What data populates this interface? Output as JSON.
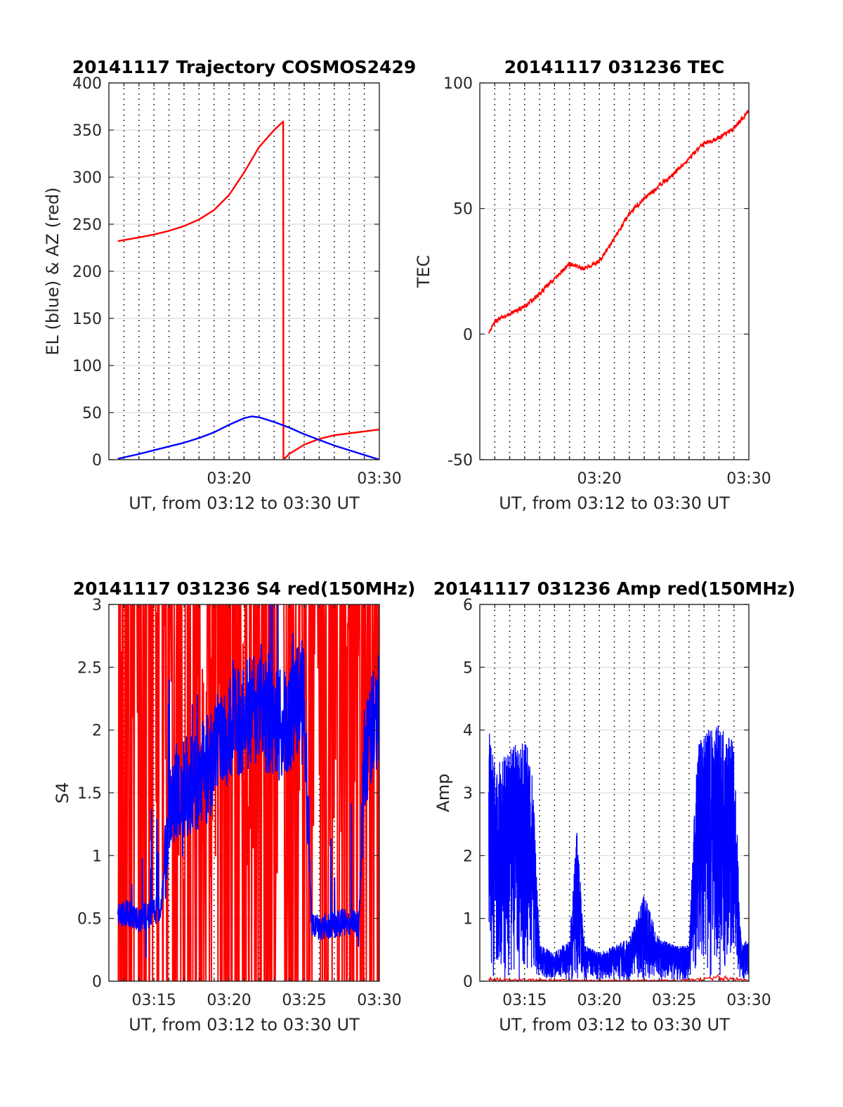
{
  "colors": {
    "red": "#ff0000",
    "blue": "#0000ff",
    "grid": "#dcdcdc",
    "axis": "#262626"
  },
  "chart_data": [
    {
      "id": "trajectory",
      "type": "line",
      "title": "20141117 Trajectory COSMOS2429",
      "xlabel": "UT, from 03:12 to 03:30 UT",
      "ylabel": "EL (blue) & AZ (red)",
      "xlim": [
        "03:12",
        "03:30"
      ],
      "ylim": [
        0,
        400
      ],
      "xticks": [
        "03:20",
        "03:30"
      ],
      "yticks": [
        0,
        50,
        100,
        150,
        200,
        250,
        300,
        350,
        400
      ],
      "grid": true,
      "series": [
        {
          "color": "red",
          "x": [
            "03:12:36",
            "03:14:00",
            "03:15:00",
            "03:16:00",
            "03:17:00",
            "03:18:00",
            "03:19:00",
            "03:20:00",
            "03:21:00",
            "03:22:00",
            "03:23:00",
            "03:23:36",
            "03:23:37",
            "03:24:00",
            "03:25:00",
            "03:26:00",
            "03:27:00",
            "03:28:00",
            "03:29:00",
            "03:30:00"
          ],
          "y": [
            232,
            236,
            239,
            243,
            248,
            255,
            265,
            281,
            305,
            332,
            350,
            359,
            0,
            6,
            16,
            22,
            26,
            28,
            30,
            32
          ]
        },
        {
          "color": "blue",
          "x": [
            "03:12:36",
            "03:14:00",
            "03:15:00",
            "03:16:00",
            "03:17:00",
            "03:18:00",
            "03:19:00",
            "03:20:00",
            "03:21:00",
            "03:21:30",
            "03:22:00",
            "03:23:00",
            "03:24:00",
            "03:25:00",
            "03:26:00",
            "03:27:00",
            "03:28:00",
            "03:29:00",
            "03:30:00"
          ],
          "y": [
            1,
            6,
            10,
            14,
            18,
            23,
            29,
            37,
            44,
            46,
            45,
            40,
            34,
            27,
            21,
            15,
            10,
            5,
            0
          ]
        }
      ]
    },
    {
      "id": "tec",
      "type": "line",
      "title": "20141117 031236 TEC",
      "xlabel": "UT, from 03:12 to 03:30 UT",
      "ylabel": "TEC",
      "xlim": [
        "03:12",
        "03:30"
      ],
      "ylim": [
        -50,
        100
      ],
      "xticks": [
        "03:20",
        "03:30"
      ],
      "yticks": [
        -50,
        0,
        50,
        100
      ],
      "grid": true,
      "series": [
        {
          "color": "red",
          "x": [
            "03:12:36",
            "03:13:00",
            "03:14:00",
            "03:15:00",
            "03:16:00",
            "03:17:00",
            "03:18:00",
            "03:19:00",
            "03:20:00",
            "03:21:00",
            "03:22:00",
            "03:23:00",
            "03:24:00",
            "03:25:00",
            "03:26:00",
            "03:27:00",
            "03:28:00",
            "03:29:00",
            "03:30:00"
          ],
          "y": [
            0,
            5,
            8,
            11,
            16,
            22,
            28,
            26,
            29,
            38,
            48,
            54,
            59,
            64,
            70,
            76,
            78,
            82,
            89
          ]
        }
      ]
    },
    {
      "id": "s4",
      "type": "line",
      "title": "20141117 031236 S4 red(150MHz)",
      "xlabel": "UT, from 03:12 to 03:30 UT",
      "ylabel": "S4",
      "xlim": [
        "03:12",
        "03:30"
      ],
      "ylim": [
        0,
        3
      ],
      "xticks": [
        "03:15",
        "03:20",
        "03:25",
        "03:30"
      ],
      "yticks": [
        0,
        0.5,
        1,
        1.5,
        2,
        2.5,
        3
      ],
      "grid": true,
      "series": [
        {
          "color": "red",
          "x": [
            "03:12:36",
            "03:13:00",
            "03:14:00",
            "03:15:00",
            "03:16:00",
            "03:17:00",
            "03:18:00",
            "03:19:00",
            "03:20:00",
            "03:21:00",
            "03:22:00",
            "03:23:00",
            "03:24:00",
            "03:25:00",
            "03:26:00",
            "03:27:00",
            "03:28:00",
            "03:29:00",
            "03:30:00"
          ],
          "y": [
            2.5,
            2.4,
            2.2,
            2.0,
            2.3,
            1.8,
            1.5,
            1.9,
            2.1,
            1.7,
            2.0,
            1.8,
            1.6,
            2.0,
            2.2,
            1.9,
            2.1,
            2.3,
            2.0
          ]
        },
        {
          "color": "blue",
          "x": [
            "03:12:36",
            "03:13:00",
            "03:14:00",
            "03:15:00",
            "03:15:30",
            "03:16:00",
            "03:17:00",
            "03:18:00",
            "03:19:00",
            "03:20:00",
            "03:21:00",
            "03:22:00",
            "03:23:00",
            "03:24:00",
            "03:25:00",
            "03:25:30",
            "03:26:00",
            "03:27:00",
            "03:28:00",
            "03:28:40",
            "03:29:00",
            "03:30:00"
          ],
          "y": [
            0.5,
            0.55,
            0.5,
            0.55,
            0.6,
            1.5,
            1.55,
            1.6,
            1.8,
            2.0,
            2.1,
            2.2,
            2.0,
            2.1,
            2.3,
            0.45,
            0.42,
            0.45,
            0.48,
            0.45,
            1.8,
            2.2
          ]
        }
      ]
    },
    {
      "id": "amp",
      "type": "line",
      "title": "20141117 031236 Amp red(150MHz)",
      "xlabel": "UT, from 03:12 to 03:30 UT",
      "ylabel": "Amp",
      "xlim": [
        "03:12",
        "03:30"
      ],
      "ylim": [
        0,
        6
      ],
      "xticks": [
        "03:15",
        "03:20",
        "03:25",
        "03:30"
      ],
      "yticks": [
        0,
        1,
        2,
        3,
        4,
        5,
        6
      ],
      "grid": true,
      "series": [
        {
          "color": "blue",
          "x": [
            "03:12:36",
            "03:13:00",
            "03:14:00",
            "03:15:00",
            "03:15:30",
            "03:16:00",
            "03:17:00",
            "03:18:00",
            "03:18:30",
            "03:19:00",
            "03:20:00",
            "03:21:00",
            "03:22:00",
            "03:23:00",
            "03:24:00",
            "03:25:00",
            "03:26:00",
            "03:26:30",
            "03:27:00",
            "03:28:00",
            "03:29:00",
            "03:29:30",
            "03:30:00"
          ],
          "y": [
            3.5,
            3.0,
            3.2,
            3.4,
            3.0,
            0.5,
            0.4,
            0.6,
            2.1,
            0.5,
            0.4,
            0.5,
            0.6,
            1.2,
            0.6,
            0.5,
            0.5,
            3.2,
            3.5,
            3.6,
            3.3,
            0.5,
            0.6
          ]
        },
        {
          "color": "red",
          "x": [
            "03:12:36",
            "03:15:00",
            "03:20:00",
            "03:25:00",
            "03:27:00",
            "03:28:00",
            "03:30:00"
          ],
          "y": [
            0.03,
            0.02,
            0.01,
            0.01,
            0.03,
            0.05,
            0.01
          ]
        }
      ]
    }
  ]
}
